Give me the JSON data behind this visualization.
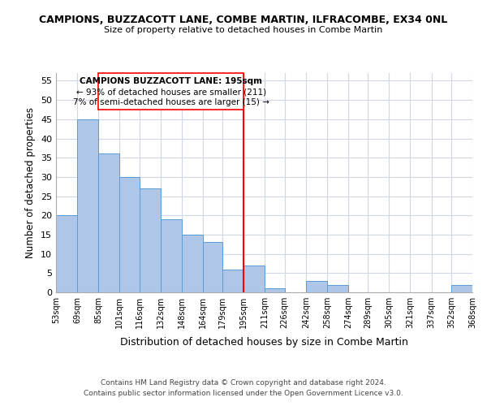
{
  "title1": "CAMPIONS, BUZZACOTT LANE, COMBE MARTIN, ILFRACOMBE, EX34 0NL",
  "title2": "Size of property relative to detached houses in Combe Martin",
  "xlabel": "Distribution of detached houses by size in Combe Martin",
  "ylabel": "Number of detached properties",
  "bin_edges": [
    53,
    69,
    85,
    101,
    116,
    132,
    148,
    164,
    179,
    195,
    211,
    226,
    242,
    258,
    274,
    289,
    305,
    321,
    337,
    352,
    368
  ],
  "bin_labels": [
    "53sqm",
    "69sqm",
    "85sqm",
    "101sqm",
    "116sqm",
    "132sqm",
    "148sqm",
    "164sqm",
    "179sqm",
    "195sqm",
    "211sqm",
    "226sqm",
    "242sqm",
    "258sqm",
    "274sqm",
    "289sqm",
    "305sqm",
    "321sqm",
    "337sqm",
    "352sqm",
    "368sqm"
  ],
  "counts": [
    20,
    45,
    36,
    30,
    27,
    19,
    15,
    13,
    6,
    7,
    1,
    0,
    3,
    2,
    0,
    0,
    0,
    0,
    0,
    2
  ],
  "bar_color": "#aec6e8",
  "bar_edge_color": "#5b9bd5",
  "reference_line_x": 195,
  "reference_line_color": "red",
  "ylim": [
    0,
    57
  ],
  "yticks": [
    0,
    5,
    10,
    15,
    20,
    25,
    30,
    35,
    40,
    45,
    50,
    55
  ],
  "annotation_title": "CAMPIONS BUZZACOTT LANE: 195sqm",
  "annotation_line1": "← 93% of detached houses are smaller (211)",
  "annotation_line2": "7% of semi-detached houses are larger (15) →",
  "footer1": "Contains HM Land Registry data © Crown copyright and database right 2024.",
  "footer2": "Contains public sector information licensed under the Open Government Licence v3.0.",
  "background_color": "#ffffff",
  "grid_color": "#d0d8e8"
}
